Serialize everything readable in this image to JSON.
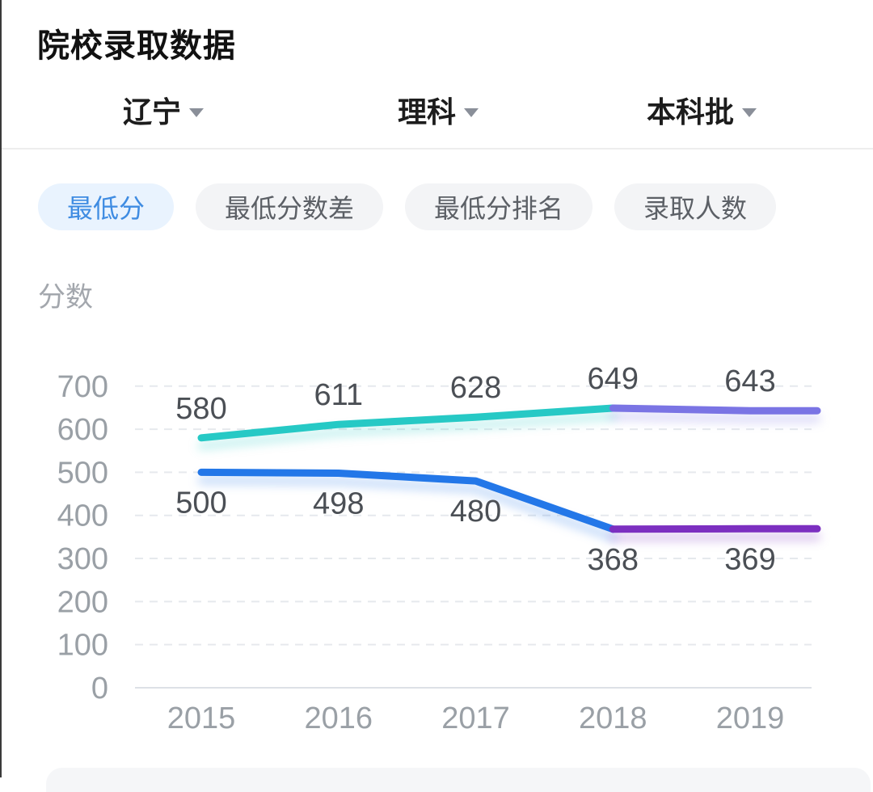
{
  "page": {
    "title": "院校录取数据"
  },
  "filters": {
    "province": {
      "label": "辽宁"
    },
    "subject": {
      "label": "理科"
    },
    "batch": {
      "label": "本科批"
    }
  },
  "tabs": [
    {
      "label": "最低分",
      "active": true
    },
    {
      "label": "最低分数差",
      "active": false
    },
    {
      "label": "最低分排名",
      "active": false
    },
    {
      "label": "录取人数",
      "active": false
    }
  ],
  "chart_data": {
    "type": "line",
    "title": "",
    "ylabel": "分数",
    "categories": [
      "2015",
      "2016",
      "2017",
      "2018",
      "2019"
    ],
    "series": [
      {
        "name": "max-line",
        "values": [
          580,
          611,
          628,
          649,
          643
        ],
        "label_position": "above",
        "color_before_split": "#26c9c5",
        "color_after_split": "#7a74e4"
      },
      {
        "name": "min-line",
        "values": [
          500,
          498,
          480,
          368,
          369
        ],
        "label_position": "below",
        "color_before_split": "#2377e8",
        "color_after_split": "#7c2fc0"
      }
    ],
    "split_category": "2018",
    "split_index": 3,
    "ylim": [
      0,
      700
    ],
    "yticks": [
      0,
      100,
      200,
      300,
      400,
      500,
      600,
      700
    ],
    "grid": "dashed-horizontal",
    "legend_position": "none",
    "axis_color": "#9aa0a6",
    "label_color": "#4b4f55",
    "grid_color": "#e6e9ed",
    "baseline_color": "#dde1e6"
  },
  "colors": {
    "tab_active_bg": "#e9f3fe",
    "tab_active_text": "#3f8ce2",
    "tab_inactive_bg": "#f3f4f6",
    "tab_inactive_text": "#5c6066"
  }
}
